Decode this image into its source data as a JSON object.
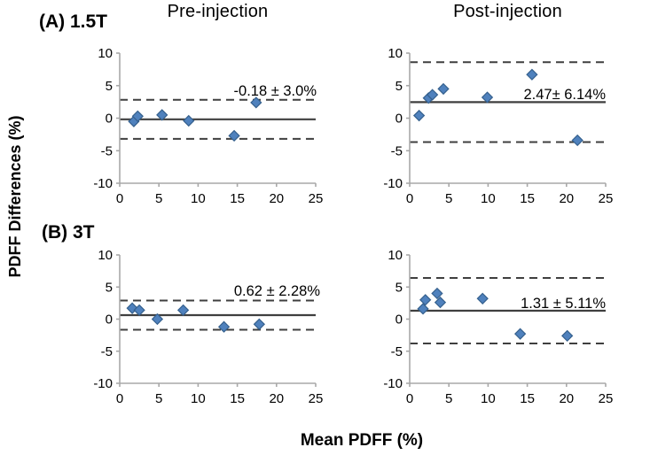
{
  "figure": {
    "col_titles": [
      "Pre-injection",
      "Post-injection"
    ],
    "row_labels": [
      "(A) 1.5T",
      "(B) 3T"
    ],
    "ylabel": "PDFF Differences (%)",
    "xlabel": "Mean PDFF (%)"
  },
  "colors": {
    "marker_fill": "#4F81BD",
    "marker_stroke": "#35608D",
    "line": "#3F3F3F",
    "axis": "#A8A8A8",
    "text": "#000000"
  },
  "chart_data": [
    {
      "id": "1.5T-pre-injection",
      "type": "scatter",
      "title": "Pre-injection",
      "group": "(A) 1.5T",
      "xlabel": "Mean PDFF (%)",
      "ylabel": "PDFF Differences (%)",
      "xlim": [
        0,
        25
      ],
      "ylim": [
        -10,
        10
      ],
      "xticks": [
        0,
        5,
        10,
        15,
        20,
        25
      ],
      "yticks": [
        10,
        5,
        0,
        -5,
        -10
      ],
      "points": [
        [
          1.8,
          -0.5
        ],
        [
          2.3,
          0.3
        ],
        [
          5.4,
          0.5
        ],
        [
          8.8,
          -0.4
        ],
        [
          14.6,
          -2.7
        ],
        [
          17.4,
          2.4
        ]
      ],
      "mean_line": -0.18,
      "upper_limit": 2.82,
      "lower_limit": -3.18,
      "annotation": "-0.18 ± 3.0%"
    },
    {
      "id": "1.5T-post-injection",
      "type": "scatter",
      "title": "Post-injection",
      "group": "(A) 1.5T",
      "xlabel": "Mean PDFF (%)",
      "ylabel": "PDFF Differences (%)",
      "xlim": [
        0,
        25
      ],
      "ylim": [
        -10,
        10
      ],
      "xticks": [
        0,
        5,
        10,
        15,
        20,
        25
      ],
      "yticks": [
        10,
        5,
        0,
        -5,
        -10
      ],
      "points": [
        [
          1.2,
          0.4
        ],
        [
          2.4,
          3.1
        ],
        [
          2.9,
          3.6
        ],
        [
          4.3,
          4.5
        ],
        [
          9.9,
          3.2
        ],
        [
          15.6,
          6.7
        ],
        [
          21.4,
          -3.4
        ]
      ],
      "mean_line": 2.47,
      "upper_limit": 8.61,
      "lower_limit": -3.67,
      "annotation": "2.47± 6.14%"
    },
    {
      "id": "3T-pre-injection",
      "type": "scatter",
      "title": "Pre-injection",
      "group": "(B) 3T",
      "xlabel": "Mean PDFF (%)",
      "ylabel": "PDFF Differences (%)",
      "xlim": [
        0,
        25
      ],
      "ylim": [
        -10,
        10
      ],
      "xticks": [
        0,
        5,
        10,
        15,
        20,
        25
      ],
      "yticks": [
        10,
        5,
        0,
        -5,
        -10
      ],
      "points": [
        [
          1.6,
          1.7
        ],
        [
          2.5,
          1.4
        ],
        [
          4.8,
          0.0
        ],
        [
          8.1,
          1.4
        ],
        [
          13.3,
          -1.2
        ],
        [
          17.8,
          -0.8
        ]
      ],
      "mean_line": 0.62,
      "upper_limit": 2.9,
      "lower_limit": -1.66,
      "annotation": "0.62 ± 2.28%"
    },
    {
      "id": "3T-post-injection",
      "type": "scatter",
      "title": "Post-injection",
      "group": "(B) 3T",
      "xlabel": "Mean PDFF (%)",
      "ylabel": "PDFF Differences (%)",
      "xlim": [
        0,
        25
      ],
      "ylim": [
        -10,
        10
      ],
      "xticks": [
        0,
        5,
        10,
        15,
        20,
        25
      ],
      "yticks": [
        10,
        5,
        0,
        -5,
        -10
      ],
      "points": [
        [
          1.7,
          1.6
        ],
        [
          2.0,
          3.0
        ],
        [
          3.5,
          4.0
        ],
        [
          3.9,
          2.6
        ],
        [
          9.3,
          3.2
        ],
        [
          14.1,
          -2.3
        ],
        [
          20.1,
          -2.6
        ]
      ],
      "mean_line": 1.31,
      "upper_limit": 6.42,
      "lower_limit": -3.8,
      "annotation": "1.31 ± 5.11%"
    }
  ]
}
